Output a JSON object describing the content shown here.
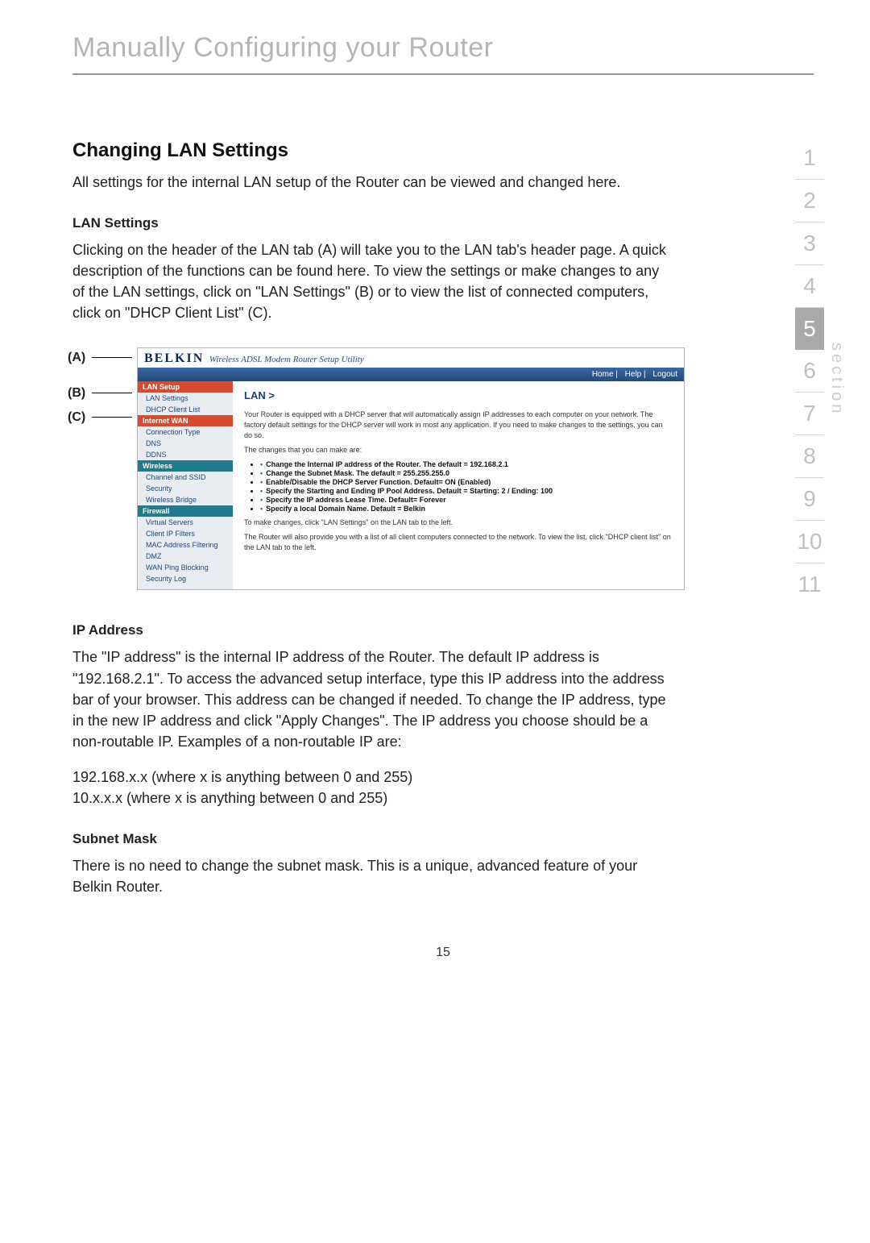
{
  "page": {
    "title": "Manually Configuring your Router",
    "number": "15"
  },
  "nav": {
    "label": "section",
    "items": [
      "1",
      "2",
      "3",
      "4",
      "5",
      "6",
      "7",
      "8",
      "9",
      "10",
      "11"
    ],
    "current": "5"
  },
  "headings": {
    "main": "Changing LAN Settings",
    "lan_settings": "LAN Settings",
    "ip_address": "IP Address",
    "subnet_mask": "Subnet Mask"
  },
  "paragraphs": {
    "intro": "All settings for the internal LAN setup of the Router can be viewed and changed here.",
    "lan_settings": "Clicking on the header of the LAN tab (A) will take you to the LAN tab's header page. A quick description of the functions can be found here. To view the settings or make changes to any of the LAN settings, click on \"LAN Settings\" (B) or to view the list of connected computers, click on \"DHCP Client List\" (C).",
    "ip_address": "The \"IP address\" is the internal IP address of the Router. The default IP address is \"192.168.2.1\". To access the advanced setup interface, type this IP address into the address bar of your browser. This address can be changed if needed. To change the IP address, type in the new IP address and click \"Apply Changes\". The IP address you choose should be a non-routable IP. Examples of a non-routable IP are:",
    "ip_ex1": "192.168.x.x (where x is anything between 0 and 255)",
    "ip_ex2": "10.x.x.x (where x is anything between 0 and 255)",
    "subnet_mask": "There is no need to change the subnet mask. This is a unique, advanced feature of your Belkin Router."
  },
  "callouts": {
    "a": "(A)",
    "b": "(B)",
    "c": "(C)"
  },
  "router": {
    "brand": "BELKIN",
    "subtitle": "Wireless ADSL Modem Router Setup Utility",
    "topbar": {
      "home": "Home",
      "help": "Help",
      "logout": "Logout"
    },
    "side": {
      "lan_setup_hdr": "LAN Setup",
      "lan_settings": "LAN Settings",
      "dhcp_client": "DHCP Client List",
      "internet_wan_hdr": "Internet WAN",
      "connection_type": "Connection Type",
      "dns": "DNS",
      "ddns": "DDNS",
      "wireless_hdr": "Wireless",
      "channel_ssid": "Channel and SSID",
      "security": "Security",
      "wireless_bridge": "Wireless Bridge",
      "firewall_hdr": "Firewall",
      "virtual_servers": "Virtual Servers",
      "client_ip": "Client IP Filters",
      "mac_filter": "MAC Address Filtering",
      "dmz": "DMZ",
      "wan_ping": "WAN Ping Blocking",
      "sec_log": "Security Log"
    },
    "main": {
      "title": "LAN >",
      "p1": "Your Router is equipped with a DHCP server that will automatically assign IP addresses to each computer on your network. The factory default settings for the DHCP server will work in most any application. If you need to make changes to the settings, you can do so.",
      "p2": "The changes that you can make are:",
      "bullets": [
        "Change the Internal IP address of the Router. The default = 192.168.2.1",
        "Change the Subnet Mask. The default = 255.255.255.0",
        "Enable/Disable the DHCP Server Function. Default= ON (Enabled)",
        "Specify the Starting and Ending IP Pool Address. Default = Starting: 2 / Ending: 100",
        "Specify the IP address Lease Time. Default= Forever",
        "Specify a local Domain Name. Default = Belkin"
      ],
      "p3": "To make changes, click \"LAN Settings\" on the LAN tab to the left.",
      "p4": "The Router will also provide you with a list of all client computers connected to the network. To view the list, click \"DHCP client list\" on the LAN tab to the left."
    }
  }
}
